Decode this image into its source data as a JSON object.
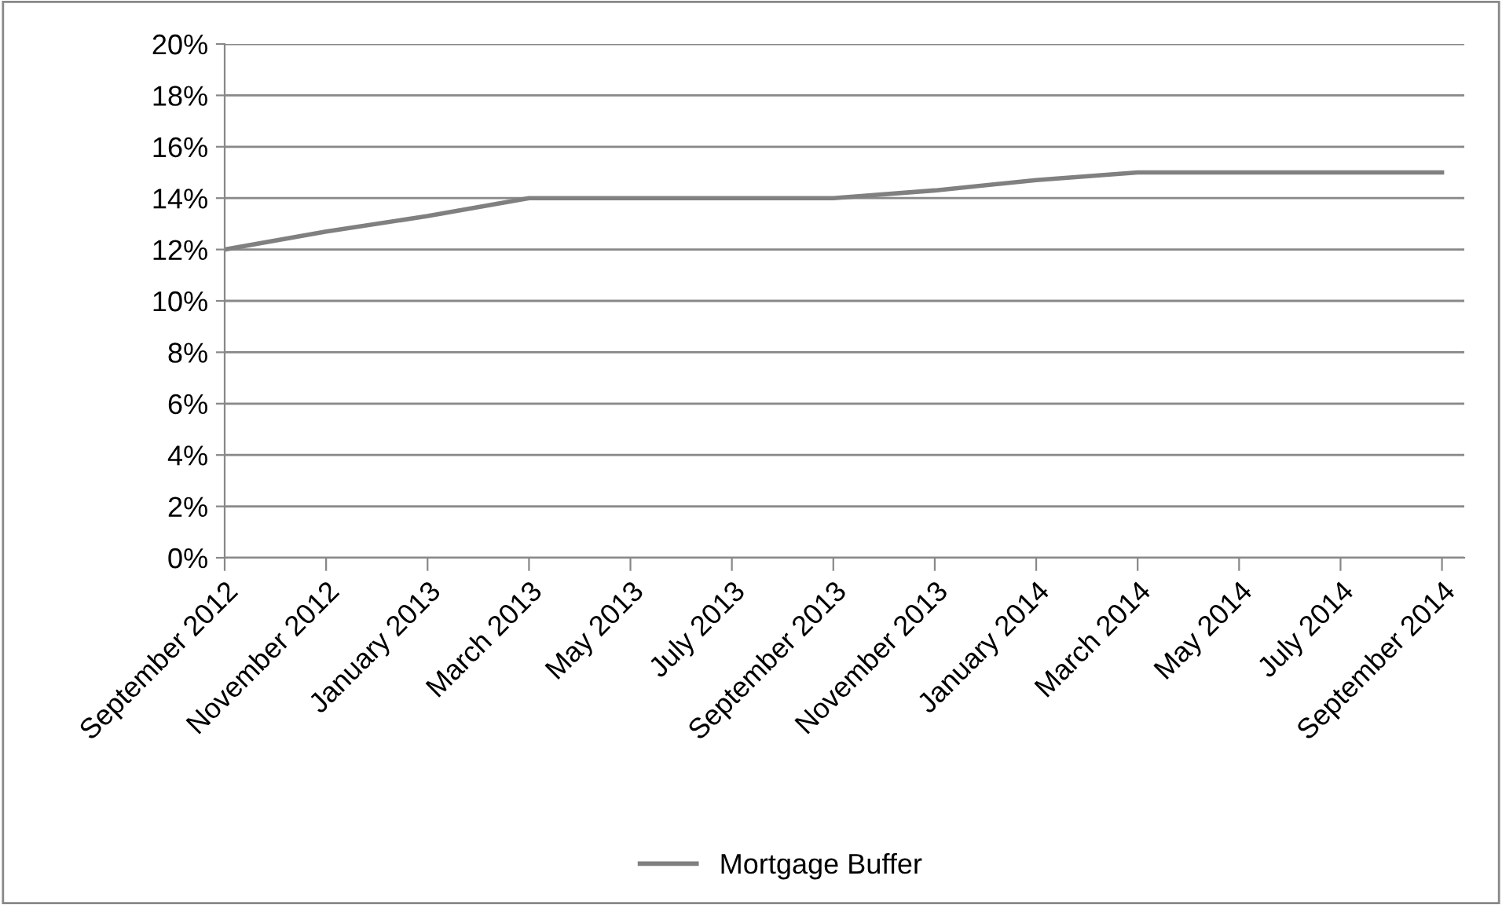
{
  "chart_data": {
    "type": "line",
    "categories": [
      "September 2012",
      "November 2012",
      "January 2013",
      "March 2013",
      "May 2013",
      "July 2013",
      "September 2013",
      "November 2013",
      "January 2014",
      "March 2014",
      "May 2014",
      "July 2014",
      "September 2014"
    ],
    "series": [
      {
        "name": "Mortgage Buffer",
        "color": "#808080",
        "values": [
          12,
          12.7,
          13.3,
          14,
          14,
          14,
          14,
          14.3,
          14.7,
          15,
          15,
          15,
          15
        ]
      }
    ],
    "ylim": [
      0,
      20
    ],
    "yticks": [
      {
        "value": 0,
        "label": "0%"
      },
      {
        "value": 2,
        "label": "2%"
      },
      {
        "value": 4,
        "label": "4%"
      },
      {
        "value": 6,
        "label": "6%"
      },
      {
        "value": 8,
        "label": "8%"
      },
      {
        "value": 10,
        "label": "10%"
      },
      {
        "value": 12,
        "label": "12%"
      },
      {
        "value": 14,
        "label": "14%"
      },
      {
        "value": 16,
        "label": "16%"
      },
      {
        "value": 18,
        "label": "18%"
      },
      {
        "value": 20,
        "label": "20%"
      }
    ],
    "grid": "y",
    "legend": "bottom",
    "marker": "none",
    "line_style": "solid"
  }
}
